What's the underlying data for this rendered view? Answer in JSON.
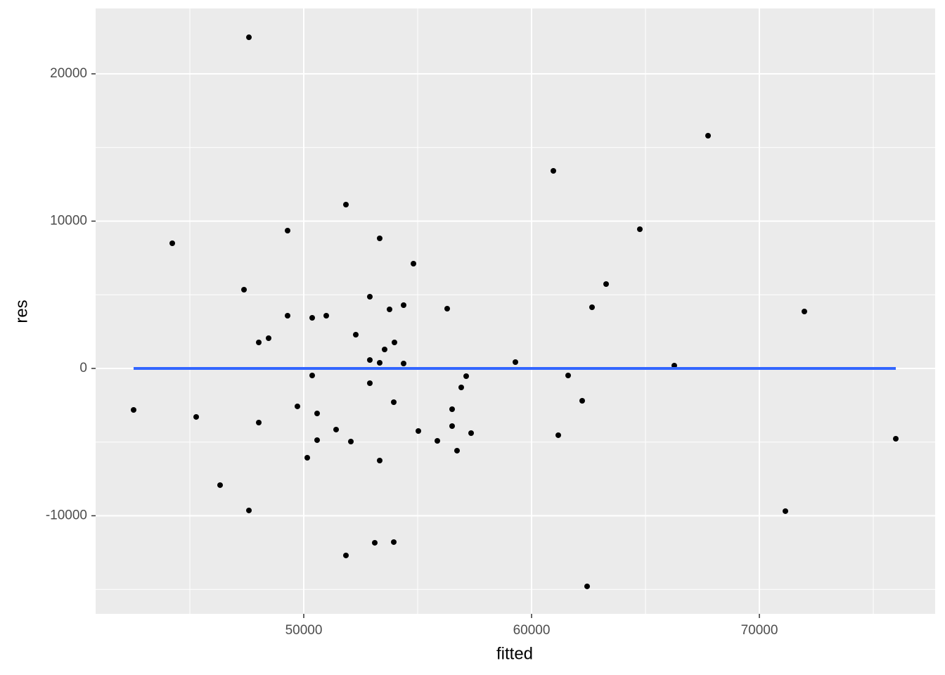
{
  "chart_data": {
    "type": "scatter",
    "x_label": "fitted",
    "y_label": "res",
    "xlim": [
      40864,
      77716
    ],
    "ylim": [
      -16659,
      24439
    ],
    "xticks": [
      50000,
      60000,
      70000
    ],
    "yticks": [
      -10000,
      0,
      10000,
      20000
    ],
    "x_minor_grid": [
      45000,
      55000,
      65000,
      75000
    ],
    "y_minor_grid": [
      -15000,
      -5000,
      5000,
      15000
    ],
    "grid": true,
    "point_color": "#000000",
    "x": [
      42531,
      44229,
      45278,
      46327,
      47377,
      47593,
      47593,
      48025,
      48025,
      48457,
      49290,
      49290,
      49722,
      50154,
      50370,
      50370,
      50586,
      50586,
      50988,
      51420,
      51852,
      51852,
      52068,
      52284,
      52901,
      52901,
      52901,
      53117,
      53333,
      53333,
      53333,
      53549,
      53765,
      53981,
      53951,
      53951,
      54383,
      54383,
      54815,
      55031,
      55864,
      56296,
      56512,
      56512,
      56728,
      56913,
      57130,
      57346,
      59290,
      60957,
      61173,
      61605,
      62222,
      62438,
      62654,
      63272,
      64753,
      66265,
      67747,
      71142,
      71975,
      75988
    ],
    "values": [
      -2816,
      8496,
      -3293,
      -7923,
      5346,
      22481,
      -9641,
      1766,
      -3675,
      2052,
      9355,
      3580,
      -2577,
      -6062,
      3437,
      -477,
      -3055,
      -4868,
      3580,
      -4152,
      11121,
      -12696,
      -4964,
      2291,
      4868,
      573,
      -1002,
      -11837,
      8830,
      382,
      -6253,
      1289,
      4009,
      1766,
      -2291,
      -11789,
      4296,
      334,
      7112,
      -4248,
      -4916,
      4057,
      -2768,
      -3914,
      -5584,
      -1289,
      -525,
      -4391,
      430,
      13412,
      -4534,
      -477,
      -2196,
      -14796,
      4152,
      5728,
      9451,
      191,
      15799,
      -9689,
      3866,
      -4773
    ],
    "fit_line": {
      "color": "#3366ff",
      "x": [
        42531,
        75988
      ],
      "values": [
        0,
        0
      ]
    }
  }
}
